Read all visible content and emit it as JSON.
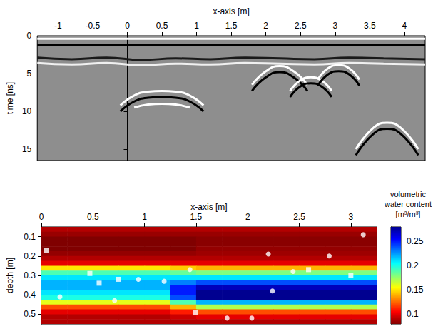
{
  "chart_data": [
    {
      "type": "line",
      "x_label": "x-axis [m]",
      "y_label": "time [ns]",
      "xlim": [
        -1.3,
        4.3
      ],
      "xticks": [
        -1,
        -0.5,
        0,
        0.5,
        1,
        1.5,
        2,
        2.5,
        3,
        3.5,
        4
      ],
      "ylim": [
        0,
        16.5
      ],
      "yticks": [
        0,
        5,
        10,
        15
      ],
      "grid": false,
      "marker": "none",
      "series": [
        {
          "color": "#ffffff",
          "x": [
            -1.3,
            4.3
          ],
          "values": [
            0.4,
            0.4
          ]
        },
        {
          "color": "#000000",
          "x": [
            -1.3,
            4.3
          ],
          "values": [
            1.2,
            1.2
          ]
        },
        {
          "color": "#1a1a1a",
          "x": [
            -1.3,
            -0.8,
            -0.3,
            0.2,
            0.7,
            1.2,
            1.7,
            2.2,
            2.7,
            3.2,
            3.7,
            4.3
          ],
          "values": [
            2.9,
            3.1,
            2.9,
            3.2,
            3.0,
            3.1,
            2.9,
            3.0,
            3.1,
            2.9,
            3.0,
            3.1
          ]
        },
        {
          "color": "#f0f0f0",
          "x": [
            -1.3,
            -0.8,
            -0.3,
            0.2,
            0.7,
            1.2,
            1.7,
            2.2,
            2.7,
            3.2,
            3.7,
            4.3
          ],
          "values": [
            3.6,
            3.8,
            3.6,
            3.9,
            3.7,
            3.8,
            3.6,
            3.7,
            3.8,
            3.6,
            3.7,
            3.8
          ]
        },
        {
          "color": "#ffffff",
          "x": [
            -0.1,
            0.1,
            0.3,
            0.5,
            0.7,
            0.9,
            1.1
          ],
          "values": [
            9.2,
            7.9,
            7.4,
            7.3,
            7.4,
            7.9,
            9.2
          ]
        },
        {
          "color": "#000000",
          "x": [
            -0.1,
            0.1,
            0.3,
            0.5,
            0.7,
            0.9,
            1.1
          ],
          "values": [
            10.0,
            8.7,
            8.2,
            8.1,
            8.2,
            8.7,
            10.0
          ]
        },
        {
          "color": "#ffffff",
          "x": [
            0.1,
            0.3,
            0.5,
            0.7,
            0.9
          ],
          "values": [
            9.5,
            9.1,
            9.0,
            9.1,
            9.5
          ]
        },
        {
          "color": "#ffffff",
          "x": [
            1.8,
            2.0,
            2.2,
            2.4,
            2.6
          ],
          "values": [
            6.5,
            4.7,
            4.0,
            4.7,
            6.5
          ]
        },
        {
          "color": "#000000",
          "x": [
            1.8,
            2.0,
            2.2,
            2.4,
            2.6
          ],
          "values": [
            7.3,
            5.5,
            4.8,
            5.5,
            7.3
          ]
        },
        {
          "color": "#ffffff",
          "x": [
            2.35,
            2.5,
            2.65,
            2.8,
            2.95
          ],
          "values": [
            7.3,
            5.9,
            5.5,
            5.9,
            7.3
          ]
        },
        {
          "color": "#000000",
          "x": [
            2.35,
            2.5,
            2.65,
            2.8,
            2.95
          ],
          "values": [
            8.1,
            6.7,
            6.3,
            6.7,
            8.1
          ]
        },
        {
          "color": "#ffffff",
          "x": [
            2.75,
            2.9,
            3.05,
            3.2,
            3.35
          ],
          "values": [
            5.8,
            4.3,
            3.9,
            4.3,
            5.8
          ]
        },
        {
          "color": "#000000",
          "x": [
            2.75,
            2.9,
            3.05,
            3.2,
            3.35
          ],
          "values": [
            6.6,
            5.1,
            4.7,
            5.1,
            6.6
          ]
        },
        {
          "color": "#ffffff",
          "x": [
            3.3,
            3.55,
            3.75,
            3.95,
            4.2
          ],
          "values": [
            15.0,
            12.2,
            11.5,
            12.2,
            15.0
          ]
        },
        {
          "color": "#000000",
          "x": [
            3.3,
            3.55,
            3.75,
            3.95,
            4.2
          ],
          "values": [
            15.8,
            13.0,
            12.3,
            13.0,
            15.8
          ]
        }
      ]
    },
    {
      "type": "heatmap",
      "x_label": "x-axis [m]",
      "y_label": "depth [m]",
      "xlim": [
        0,
        3.25
      ],
      "xticks": [
        0,
        0.5,
        1,
        1.5,
        2,
        2.5,
        3
      ],
      "ylim": [
        0.05,
        0.55
      ],
      "yticks": [
        0.1,
        0.2,
        0.3,
        0.4,
        0.5
      ],
      "grid": false,
      "x": [
        0.125,
        0.375,
        0.625,
        0.875,
        1.125,
        1.375,
        1.625,
        1.875,
        2.125,
        2.375,
        2.625,
        2.875,
        3.125
      ],
      "y": [
        0.0625,
        0.0875,
        0.1125,
        0.1375,
        0.1625,
        0.1875,
        0.2125,
        0.2375,
        0.2625,
        0.2875,
        0.3125,
        0.3375,
        0.3625,
        0.3875,
        0.4125,
        0.4375,
        0.4625,
        0.4875,
        0.5125,
        0.5375
      ],
      "values": [
        [
          0.09,
          0.09,
          0.09,
          0.09,
          0.09,
          0.09,
          0.09,
          0.09,
          0.09,
          0.09,
          0.09,
          0.09,
          0.09
        ],
        [
          0.085,
          0.085,
          0.085,
          0.085,
          0.085,
          0.085,
          0.085,
          0.085,
          0.085,
          0.085,
          0.085,
          0.085,
          0.085
        ],
        [
          0.08,
          0.08,
          0.08,
          0.08,
          0.08,
          0.08,
          0.082,
          0.082,
          0.082,
          0.082,
          0.082,
          0.082,
          0.082
        ],
        [
          0.08,
          0.08,
          0.08,
          0.08,
          0.08,
          0.08,
          0.082,
          0.082,
          0.082,
          0.082,
          0.082,
          0.082,
          0.082
        ],
        [
          0.08,
          0.08,
          0.08,
          0.08,
          0.08,
          0.08,
          0.084,
          0.084,
          0.084,
          0.084,
          0.084,
          0.084,
          0.084
        ],
        [
          0.084,
          0.084,
          0.084,
          0.084,
          0.084,
          0.084,
          0.086,
          0.086,
          0.086,
          0.086,
          0.086,
          0.086,
          0.086
        ],
        [
          0.09,
          0.09,
          0.09,
          0.09,
          0.09,
          0.09,
          0.09,
          0.09,
          0.09,
          0.09,
          0.09,
          0.09,
          0.09
        ],
        [
          0.1,
          0.1,
          0.1,
          0.1,
          0.1,
          0.1,
          0.1,
          0.1,
          0.1,
          0.1,
          0.1,
          0.1,
          0.1
        ],
        [
          0.15,
          0.15,
          0.15,
          0.15,
          0.15,
          0.145,
          0.14,
          0.14,
          0.14,
          0.14,
          0.14,
          0.14,
          0.14
        ],
        [
          0.19,
          0.19,
          0.19,
          0.19,
          0.19,
          0.185,
          0.18,
          0.18,
          0.18,
          0.18,
          0.18,
          0.18,
          0.18
        ],
        [
          0.21,
          0.21,
          0.21,
          0.21,
          0.21,
          0.21,
          0.21,
          0.21,
          0.21,
          0.21,
          0.21,
          0.21,
          0.21
        ],
        [
          0.22,
          0.22,
          0.22,
          0.22,
          0.22,
          0.23,
          0.24,
          0.24,
          0.24,
          0.24,
          0.24,
          0.24,
          0.24
        ],
        [
          0.22,
          0.22,
          0.22,
          0.22,
          0.22,
          0.25,
          0.27,
          0.27,
          0.27,
          0.27,
          0.27,
          0.27,
          0.27
        ],
        [
          0.21,
          0.21,
          0.21,
          0.21,
          0.21,
          0.25,
          0.28,
          0.28,
          0.28,
          0.28,
          0.28,
          0.28,
          0.28
        ],
        [
          0.2,
          0.2,
          0.2,
          0.2,
          0.2,
          0.24,
          0.28,
          0.28,
          0.28,
          0.28,
          0.28,
          0.28,
          0.28
        ],
        [
          0.16,
          0.16,
          0.16,
          0.16,
          0.16,
          0.19,
          0.22,
          0.22,
          0.22,
          0.22,
          0.22,
          0.22,
          0.22
        ],
        [
          0.12,
          0.12,
          0.12,
          0.12,
          0.12,
          0.14,
          0.17,
          0.17,
          0.17,
          0.17,
          0.17,
          0.17,
          0.17
        ],
        [
          0.1,
          0.1,
          0.1,
          0.1,
          0.1,
          0.11,
          0.12,
          0.12,
          0.12,
          0.12,
          0.12,
          0.12,
          0.12
        ],
        [
          0.09,
          0.09,
          0.09,
          0.09,
          0.09,
          0.095,
          0.1,
          0.1,
          0.1,
          0.1,
          0.1,
          0.1,
          0.1
        ],
        [
          0.09,
          0.09,
          0.09,
          0.09,
          0.09,
          0.09,
          0.09,
          0.09,
          0.09,
          0.09,
          0.09,
          0.09,
          0.09
        ]
      ],
      "colorbar": {
        "title": "volumetric water content [m³/m³]",
        "range": [
          0.08,
          0.28
        ],
        "ticks": [
          0.1,
          0.15,
          0.2,
          0.25
        ],
        "colors": [
          "#800000",
          "#ff0000",
          "#ff8000",
          "#ffff00",
          "#80ff80",
          "#00ffff",
          "#0080ff",
          "#0000ff",
          "#000090"
        ]
      },
      "series": [
        {
          "type": "scatter",
          "marker": "circle",
          "color": "#ffffff",
          "x": [
            0.18,
            0.71,
            0.94,
            1.19,
            1.44,
            1.8,
            2.04,
            2.2,
            2.24,
            2.44,
            2.79,
            3.12
          ],
          "values": [
            0.41,
            0.43,
            0.32,
            0.33,
            0.27,
            0.52,
            0.52,
            0.19,
            0.38,
            0.28,
            0.2,
            0.09
          ]
        },
        {
          "type": "scatter",
          "marker": "square",
          "color": "#ffffff",
          "x": [
            0.05,
            0.47,
            0.56,
            0.75,
            1.49,
            2.59,
            3.0
          ],
          "values": [
            0.17,
            0.29,
            0.34,
            0.32,
            0.49,
            0.27,
            0.3
          ]
        }
      ]
    }
  ]
}
